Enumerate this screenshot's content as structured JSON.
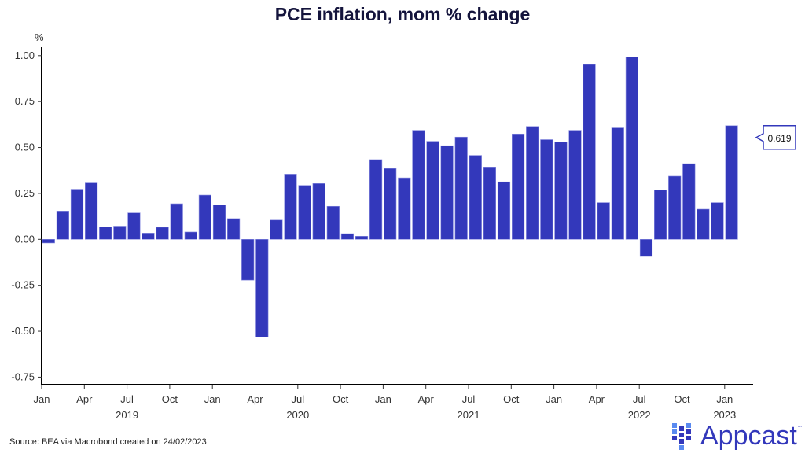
{
  "chart_data": {
    "type": "bar",
    "title": "PCE inflation, mom % change",
    "xlabel": "",
    "ylabel": "%",
    "ylim": [
      -0.75,
      1.0
    ],
    "yticks": [
      "1.00",
      "0.75",
      "0.50",
      "0.25",
      "0.00",
      "-0.25",
      "-0.50",
      "-0.75"
    ],
    "ytick_values": [
      1.0,
      0.75,
      0.5,
      0.25,
      0.0,
      -0.25,
      -0.5,
      -0.75
    ],
    "xtick_labels": [
      "Jan",
      "Apr",
      "Jul",
      "Oct",
      "Jan",
      "Apr",
      "Jul",
      "Oct",
      "Jan",
      "Apr",
      "Jul",
      "Oct",
      "Jan",
      "Apr",
      "Jul",
      "Oct",
      "Jan"
    ],
    "year_labels": [
      {
        "label": "2019",
        "month_index": 6
      },
      {
        "label": "2020",
        "month_index": 18
      },
      {
        "label": "2021",
        "month_index": 30
      },
      {
        "label": "2022",
        "month_index": 42
      },
      {
        "label": "2023",
        "month_index": 48
      }
    ],
    "grid": false,
    "categories": [
      "2019-01",
      "2019-02",
      "2019-03",
      "2019-04",
      "2019-05",
      "2019-06",
      "2019-07",
      "2019-08",
      "2019-09",
      "2019-10",
      "2019-11",
      "2019-12",
      "2020-01",
      "2020-02",
      "2020-03",
      "2020-04",
      "2020-05",
      "2020-06",
      "2020-07",
      "2020-08",
      "2020-09",
      "2020-10",
      "2020-11",
      "2020-12",
      "2021-01",
      "2021-02",
      "2021-03",
      "2021-04",
      "2021-05",
      "2021-06",
      "2021-07",
      "2021-08",
      "2021-09",
      "2021-10",
      "2021-11",
      "2021-12",
      "2022-01",
      "2022-02",
      "2022-03",
      "2022-04",
      "2022-05",
      "2022-06",
      "2022-07",
      "2022-08",
      "2022-09",
      "2022-10",
      "2022-11",
      "2022-12",
      "2023-01"
    ],
    "values": [
      -0.02,
      0.154,
      0.273,
      0.307,
      0.068,
      0.072,
      0.144,
      0.034,
      0.066,
      0.194,
      0.04,
      0.241,
      0.187,
      0.113,
      -0.222,
      -0.531,
      0.105,
      0.355,
      0.294,
      0.304,
      0.18,
      0.031,
      0.017,
      0.434,
      0.386,
      0.335,
      0.594,
      0.534,
      0.51,
      0.557,
      0.457,
      0.394,
      0.313,
      0.574,
      0.615,
      0.543,
      0.53,
      0.594,
      0.952,
      0.2,
      0.607,
      0.992,
      -0.093,
      0.268,
      0.344,
      0.412,
      0.164,
      0.2,
      0.619
    ],
    "bar_color": "#3338bb",
    "callout": {
      "label": "0.619",
      "value": 0.619
    }
  },
  "footer": {
    "source": "Source: BEA via Macrobond created on 24/02/2023",
    "logo_text": "Appcast",
    "logo_tm": "™"
  }
}
